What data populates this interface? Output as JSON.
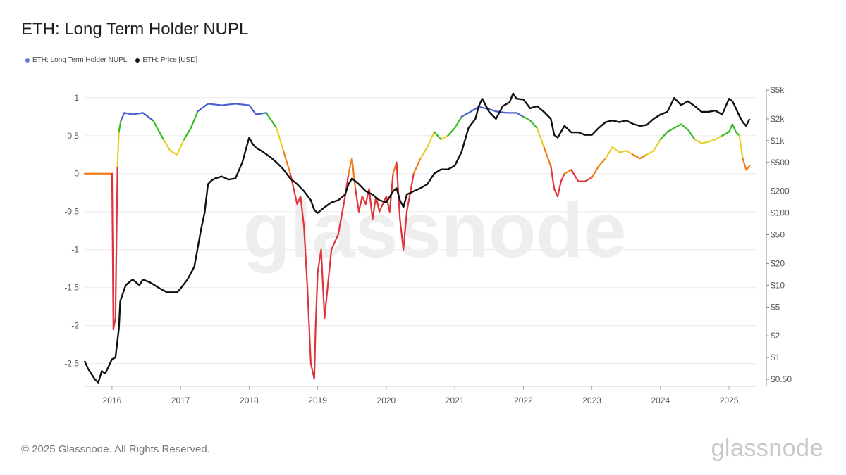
{
  "title": "ETH: Long Term Holder NUPL",
  "legend": [
    {
      "label": "ETH: Long Term Holder NUPL",
      "color": "#6677dd"
    },
    {
      "label": "ETH: Price [USD]",
      "color": "#111111"
    }
  ],
  "footer": "© 2025 Glassnode. All Rights Reserved.",
  "watermark": "glassnode",
  "brand": "glassnode",
  "chart_data": {
    "type": "line",
    "title": "ETH: Long Term Holder NUPL",
    "x_ticks": [
      "2016",
      "2017",
      "2018",
      "2019",
      "2020",
      "2021",
      "2022",
      "2023",
      "2024",
      "2025"
    ],
    "x_range": [
      2015.6,
      2025.4
    ],
    "left_axis": {
      "ticks": [
        "1",
        "0.5",
        "0",
        "-0.5",
        "-1",
        "-1.5",
        "-2",
        "-2.5"
      ],
      "range": [
        -2.8,
        1.1
      ]
    },
    "right_axis": {
      "scale": "log",
      "ticks": [
        "$5k",
        "$2k",
        "$1k",
        "$500",
        "$200",
        "$100",
        "$50",
        "$20",
        "$10",
        "$5",
        "$2",
        "$1",
        "$0.50"
      ],
      "range": [
        0.4,
        5000
      ]
    },
    "grid": true,
    "legend_position": "top-left",
    "nupl_color_bands": [
      {
        "min": 0.75,
        "color": "#4a5fd0"
      },
      {
        "min": 0.5,
        "color": "#33bb22"
      },
      {
        "min": 0.25,
        "color": "#e6cf2a"
      },
      {
        "min": 0.0,
        "color": "#f07e14"
      },
      {
        "min": -99,
        "color": "#e0333a"
      }
    ],
    "series": [
      {
        "name": "ETH: Long Term Holder NUPL",
        "color": "#6677dd",
        "x": [
          2015.6,
          2016.0,
          2016.01,
          2016.02,
          2016.05,
          2016.08,
          2016.1,
          2016.13,
          2016.18,
          2016.3,
          2016.45,
          2016.6,
          2016.75,
          2016.85,
          2016.95,
          2017.05,
          2017.15,
          2017.25,
          2017.4,
          2017.6,
          2017.8,
          2018.0,
          2018.1,
          2018.25,
          2018.4,
          2018.5,
          2018.55,
          2018.6,
          2018.65,
          2018.7,
          2018.75,
          2018.8,
          2018.85,
          2018.9,
          2018.95,
          2018.97,
          2019.0,
          2019.05,
          2019.1,
          2019.2,
          2019.3,
          2019.4,
          2019.45,
          2019.5,
          2019.55,
          2019.6,
          2019.65,
          2019.7,
          2019.75,
          2019.8,
          2019.85,
          2019.9,
          2019.95,
          2020.0,
          2020.05,
          2020.1,
          2020.15,
          2020.2,
          2020.25,
          2020.3,
          2020.4,
          2020.5,
          2020.6,
          2020.7,
          2020.8,
          2020.9,
          2021.0,
          2021.1,
          2021.2,
          2021.35,
          2021.5,
          2021.6,
          2021.75,
          2021.9,
          2022.0,
          2022.1,
          2022.2,
          2022.3,
          2022.4,
          2022.45,
          2022.5,
          2022.55,
          2022.6,
          2022.7,
          2022.8,
          2022.9,
          2023.0,
          2023.1,
          2023.2,
          2023.3,
          2023.4,
          2023.5,
          2023.6,
          2023.7,
          2023.8,
          2023.9,
          2024.0,
          2024.1,
          2024.2,
          2024.3,
          2024.4,
          2024.5,
          2024.6,
          2024.7,
          2024.8,
          2024.9,
          2025.0,
          2025.05,
          2025.1,
          2025.15,
          2025.2,
          2025.25,
          2025.3
        ],
        "values": [
          0,
          0,
          -1.0,
          -2.05,
          -1.9,
          0.1,
          0.55,
          0.7,
          0.8,
          0.78,
          0.8,
          0.7,
          0.45,
          0.3,
          0.25,
          0.45,
          0.6,
          0.82,
          0.92,
          0.9,
          0.92,
          0.9,
          0.78,
          0.8,
          0.6,
          0.3,
          0.15,
          0.0,
          -0.2,
          -0.4,
          -0.3,
          -0.7,
          -1.5,
          -2.5,
          -2.7,
          -2.0,
          -1.3,
          -1.0,
          -1.9,
          -1.0,
          -0.8,
          -0.3,
          0.0,
          0.2,
          -0.2,
          -0.5,
          -0.3,
          -0.4,
          -0.2,
          -0.6,
          -0.3,
          -0.5,
          -0.4,
          -0.3,
          -0.5,
          0.0,
          0.15,
          -0.6,
          -1.0,
          -0.5,
          0.0,
          0.2,
          0.35,
          0.55,
          0.45,
          0.5,
          0.6,
          0.75,
          0.8,
          0.88,
          0.85,
          0.82,
          0.8,
          0.8,
          0.75,
          0.7,
          0.6,
          0.35,
          0.1,
          -0.2,
          -0.3,
          -0.1,
          0.0,
          0.05,
          -0.1,
          -0.1,
          -0.05,
          0.1,
          0.2,
          0.35,
          0.28,
          0.3,
          0.25,
          0.2,
          0.25,
          0.3,
          0.45,
          0.55,
          0.6,
          0.65,
          0.58,
          0.45,
          0.4,
          0.42,
          0.45,
          0.5,
          0.55,
          0.65,
          0.55,
          0.5,
          0.2,
          0.05,
          0.1
        ]
      },
      {
        "name": "ETH: Price [USD]",
        "color": "#111111",
        "x": [
          2015.6,
          2015.65,
          2015.75,
          2015.8,
          2015.85,
          2015.9,
          2015.95,
          2016.0,
          2016.05,
          2016.1,
          2016.12,
          2016.2,
          2016.3,
          2016.4,
          2016.45,
          2016.55,
          2016.7,
          2016.8,
          2016.9,
          2016.95,
          2017.0,
          2017.1,
          2017.2,
          2017.3,
          2017.35,
          2017.4,
          2017.45,
          2017.5,
          2017.6,
          2017.7,
          2017.8,
          2017.9,
          2018.0,
          2018.05,
          2018.1,
          2018.2,
          2018.3,
          2018.4,
          2018.5,
          2018.6,
          2018.7,
          2018.8,
          2018.9,
          2018.95,
          2019.0,
          2019.1,
          2019.2,
          2019.3,
          2019.4,
          2019.45,
          2019.5,
          2019.6,
          2019.7,
          2019.8,
          2019.9,
          2020.0,
          2020.1,
          2020.15,
          2020.2,
          2020.25,
          2020.3,
          2020.4,
          2020.5,
          2020.6,
          2020.7,
          2020.8,
          2020.9,
          2021.0,
          2021.1,
          2021.2,
          2021.3,
          2021.35,
          2021.4,
          2021.5,
          2021.6,
          2021.7,
          2021.8,
          2021.85,
          2021.9,
          2022.0,
          2022.1,
          2022.2,
          2022.3,
          2022.4,
          2022.45,
          2022.5,
          2022.6,
          2022.7,
          2022.8,
          2022.9,
          2023.0,
          2023.1,
          2023.2,
          2023.3,
          2023.4,
          2023.5,
          2023.6,
          2023.7,
          2023.8,
          2023.9,
          2024.0,
          2024.1,
          2024.2,
          2024.3,
          2024.4,
          2024.5,
          2024.6,
          2024.7,
          2024.8,
          2024.9,
          2025.0,
          2025.05,
          2025.1,
          2025.15,
          2025.2,
          2025.25,
          2025.3
        ],
        "values": [
          0.9,
          0.7,
          0.5,
          0.45,
          0.65,
          0.6,
          0.75,
          0.95,
          1.0,
          2.5,
          6,
          10,
          12,
          10,
          12,
          11,
          9,
          8,
          8,
          8,
          9,
          12,
          18,
          60,
          100,
          250,
          280,
          300,
          320,
          290,
          300,
          500,
          1100,
          900,
          800,
          700,
          600,
          500,
          400,
          300,
          250,
          200,
          150,
          110,
          100,
          120,
          140,
          150,
          180,
          250,
          300,
          250,
          200,
          180,
          150,
          140,
          200,
          220,
          150,
          120,
          180,
          200,
          220,
          250,
          350,
          400,
          400,
          450,
          700,
          1500,
          2000,
          3000,
          3800,
          2500,
          2000,
          3000,
          3400,
          4500,
          3800,
          3700,
          2800,
          3000,
          2500,
          2000,
          1200,
          1100,
          1600,
          1300,
          1300,
          1200,
          1200,
          1500,
          1800,
          1900,
          1800,
          1900,
          1700,
          1600,
          1650,
          2000,
          2300,
          2500,
          3900,
          3100,
          3500,
          3000,
          2500,
          2500,
          2600,
          2300,
          3800,
          3500,
          2800,
          2200,
          1800,
          1600,
          2000
        ]
      }
    ]
  }
}
